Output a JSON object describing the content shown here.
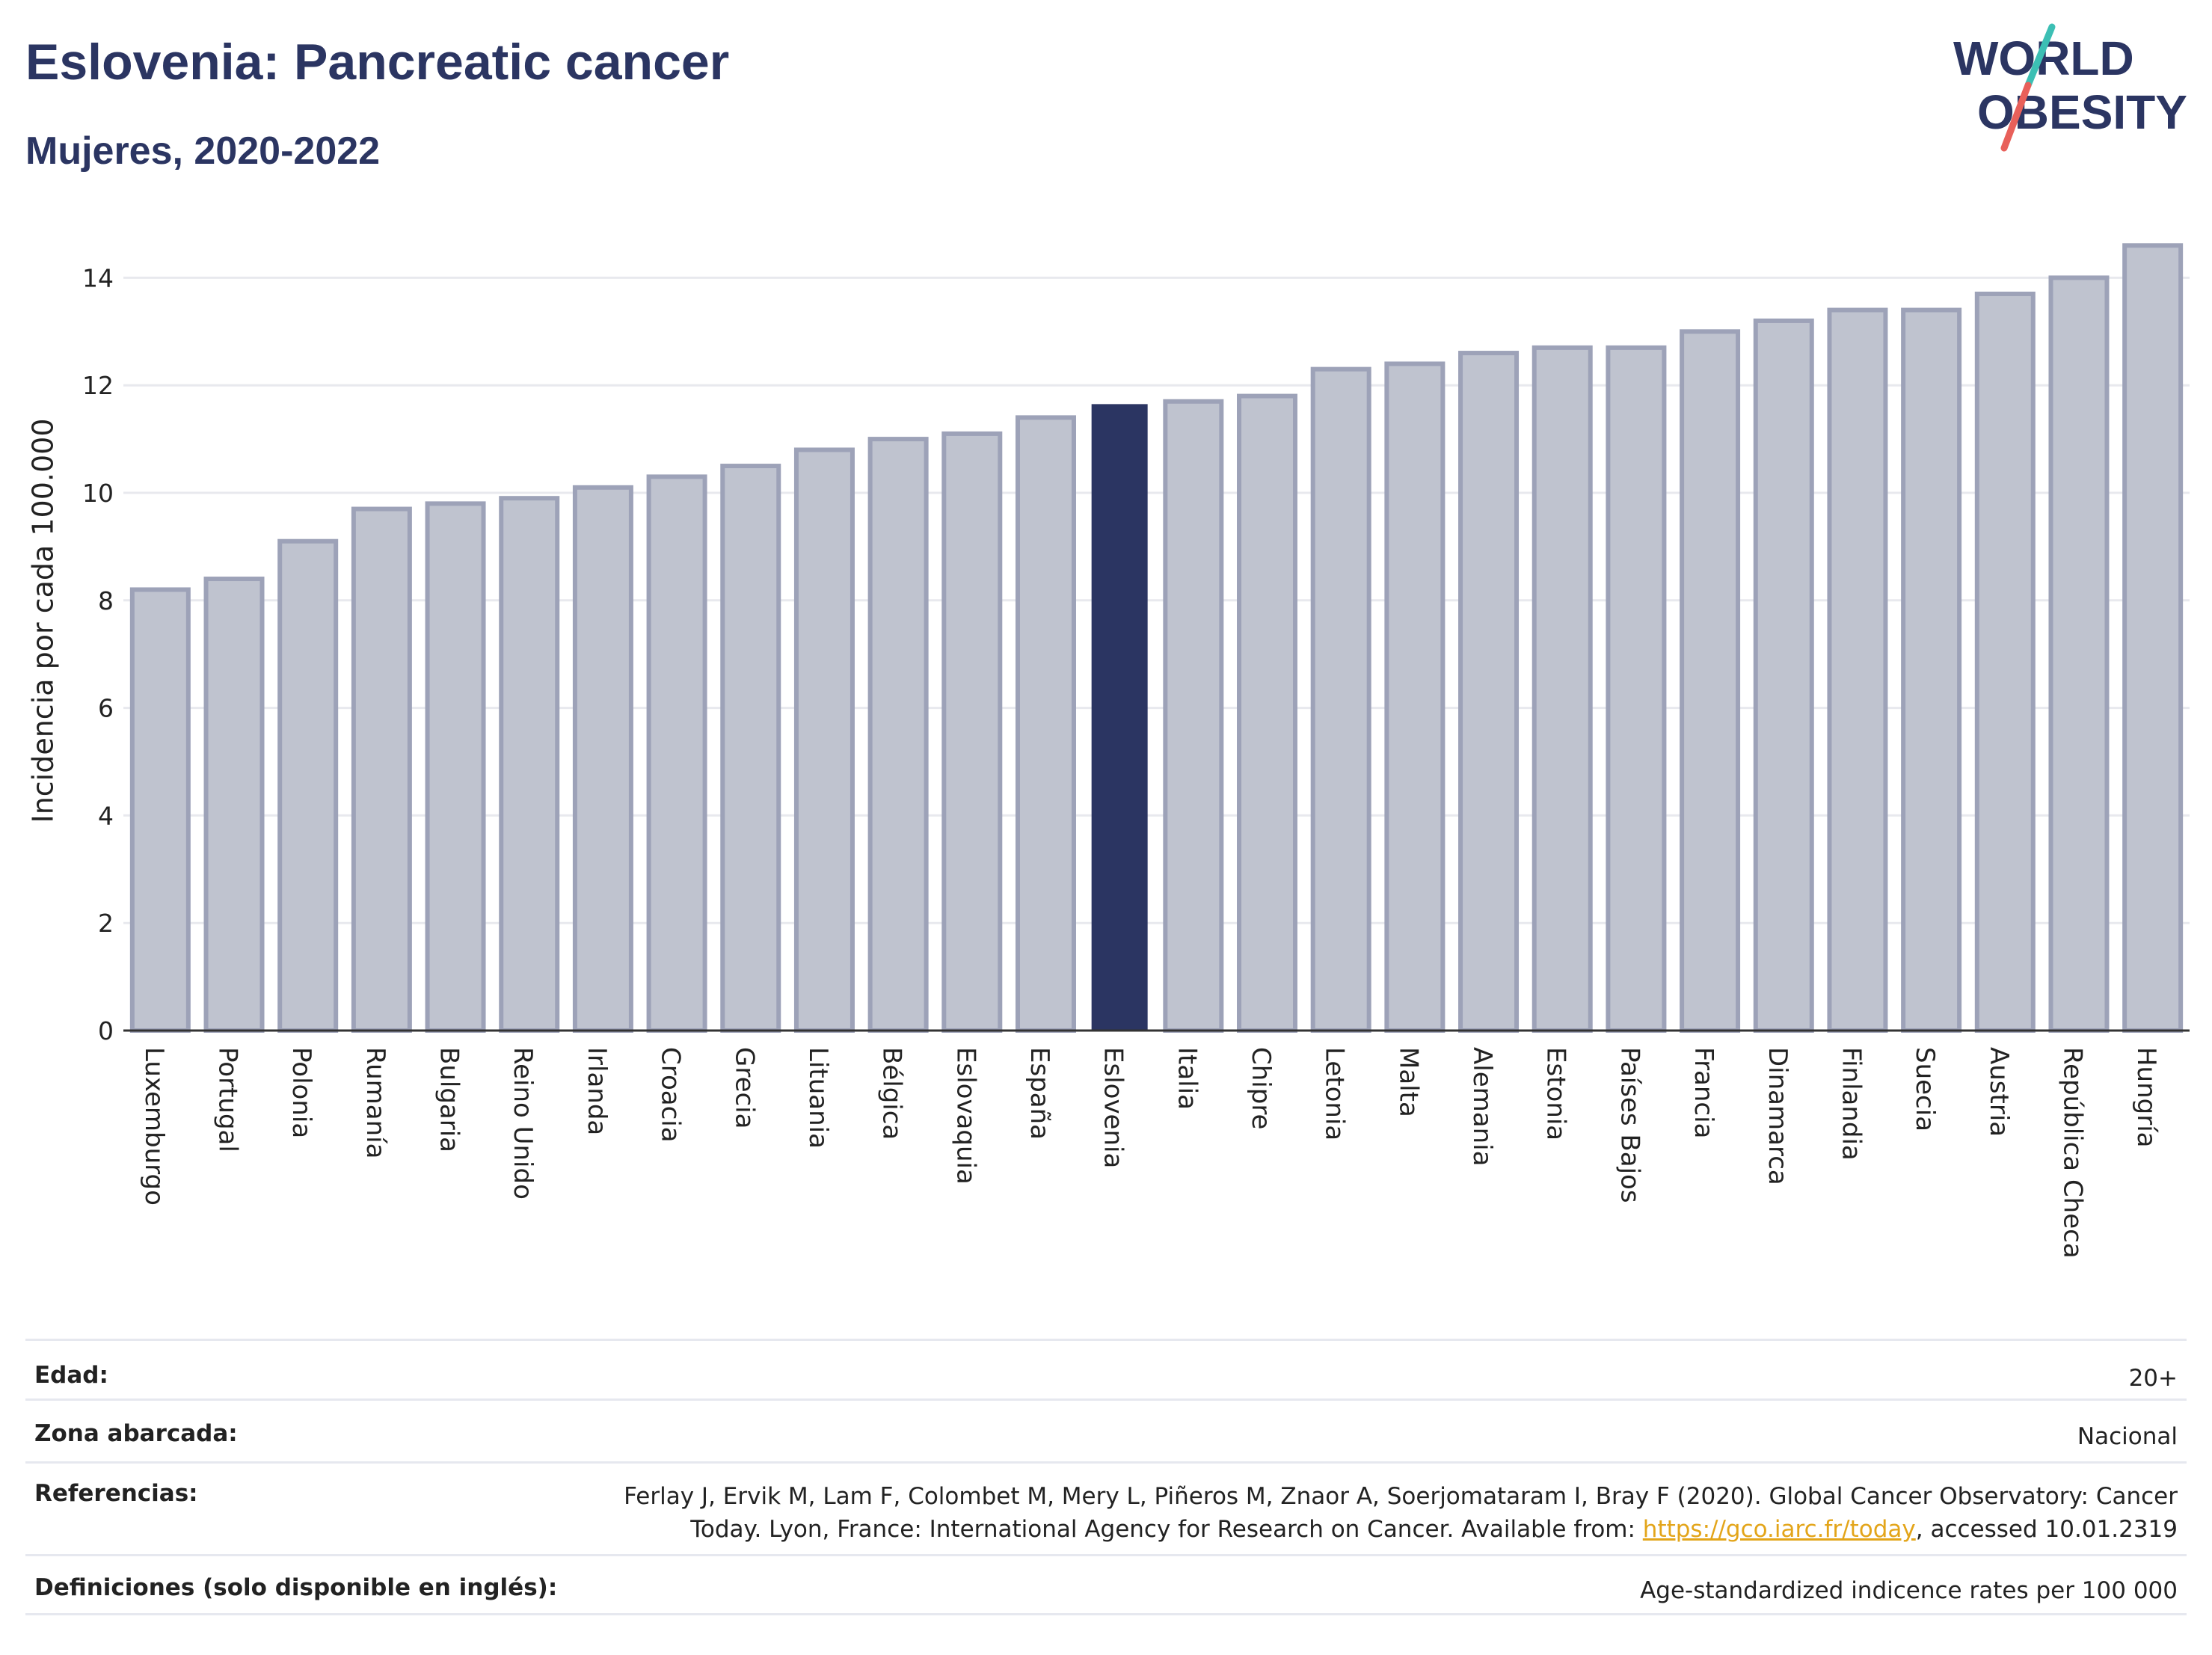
{
  "header": {
    "title": "Eslovenia: Pancreatic cancer",
    "subtitle": "Mujeres, 2020-2022"
  },
  "logo": {
    "line1": "WORLD",
    "line2": "OBESITY"
  },
  "colors": {
    "bar_fill": "#bfc3cf",
    "bar_stroke": "#9da2b8",
    "highlight": "#2b3562",
    "title": "#2b3562",
    "grid": "#e8e9ee",
    "link": "#e3a51a",
    "logo_teal": "#3cbfb4",
    "logo_red": "#e8605a"
  },
  "chart_data": {
    "type": "bar",
    "ylabel": "Incidencia por cada 100.000",
    "xlabel": "",
    "ylim": [
      0,
      15
    ],
    "yticks": [
      0,
      2,
      4,
      6,
      8,
      10,
      12,
      14
    ],
    "highlight": "Eslovenia",
    "grid": true,
    "categories": [
      "Luxemburgo",
      "Portugal",
      "Polonia",
      "Rumanía",
      "Bulgaria",
      "Reino Unido",
      "Irlanda",
      "Croacia",
      "Grecia",
      "Lituania",
      "Bélgica",
      "Eslovaquia",
      "España",
      "Eslovenia",
      "Italia",
      "Chipre",
      "Letonia",
      "Malta",
      "Alemania",
      "Estonia",
      "Países Bajos",
      "Francia",
      "Dinamarca",
      "Finlandia",
      "Suecia",
      "Austria",
      "República Checa",
      "Hungría"
    ],
    "values": [
      8.2,
      8.4,
      9.1,
      9.7,
      9.8,
      9.9,
      10.1,
      10.3,
      10.5,
      10.8,
      11.0,
      11.1,
      11.4,
      11.65,
      11.7,
      11.8,
      12.3,
      12.4,
      12.6,
      12.7,
      12.7,
      13.0,
      13.2,
      13.4,
      13.4,
      13.7,
      14.0,
      14.6
    ]
  },
  "meta": {
    "edad_label": "Edad:",
    "edad_value": "20+",
    "zona_label": "Zona abarcada:",
    "zona_value": "Nacional",
    "ref_label": "Referencias:",
    "ref_text_1": "Ferlay J, Ervik M, Lam F, Colombet M, Mery L, Piñeros M, Znaor A, Soerjomataram I, Bray F (2020). Global Cancer Observatory: Cancer Today. Lyon, France: International Agency for Research on Cancer. Available from: ",
    "ref_link": "https://gco.iarc.fr/today",
    "ref_text_2": ", accessed 10.01.2319",
    "def_label": "Definiciones (solo disponible en inglés):",
    "def_value": "Age-standardized indicence rates per 100 000"
  }
}
